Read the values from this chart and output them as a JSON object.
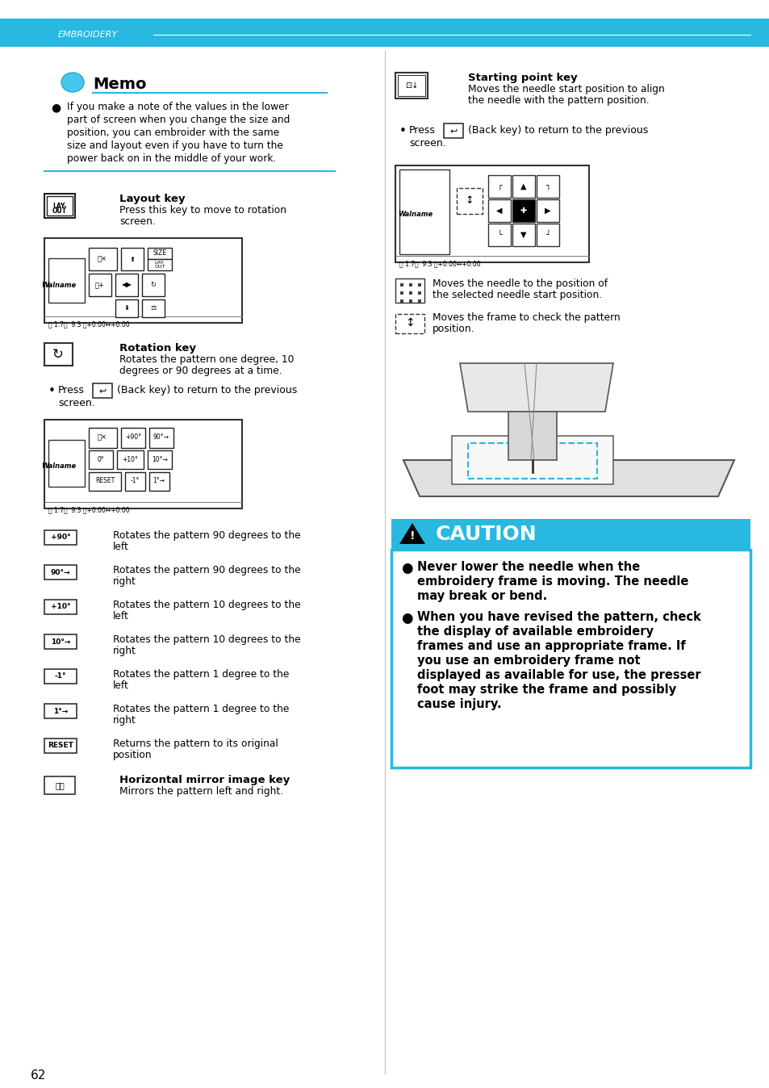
{
  "page_bg": "#ffffff",
  "header_bg": "#29b8e0",
  "header_text": "EMBROIDERY",
  "header_text_color": "#ffffff",
  "page_number": "62",
  "light_blue": "#29b8e0",
  "text_color": "#000000",
  "memo_title": "Memo",
  "memo_lines": [
    "If you make a note of the values in the lower",
    "part of screen when you change the size and",
    "position, you can embroider with the same",
    "size and layout even if you have to turn the",
    "power back on in the middle of your work."
  ],
  "layout_key_label": "Layout key",
  "layout_key_desc": [
    "Press this key to move to rotation",
    "screen."
  ],
  "rotation_key_label": "Rotation key",
  "rotation_key_desc": [
    "Rotates the pattern one degree, 10",
    "degrees or 90 degrees at a time."
  ],
  "rotate_icon_descs": [
    [
      "+90°",
      "Rotates the pattern 90 degrees to the",
      "left"
    ],
    [
      "90°→",
      "Rotates the pattern 90 degrees to the",
      "right"
    ],
    [
      "+10°",
      "Rotates the pattern 10 degrees to the",
      "left"
    ],
    [
      "10°→",
      "Rotates the pattern 10 degrees to the",
      "right"
    ],
    [
      "-1°",
      "Rotates the pattern 1 degree to the",
      "left"
    ],
    [
      "1°→",
      "Rotates the pattern 1 degree to the",
      "right"
    ],
    [
      "RESET",
      "Returns the pattern to its original",
      "position"
    ]
  ],
  "hmirror_label": "Horizontal mirror image key",
  "hmirror_desc": "Mirrors the pattern left and right.",
  "right_starting_label": "Starting point key",
  "right_starting_desc": [
    "Moves the needle start position to align",
    "the needle with the pattern position."
  ],
  "right_move_needle_desc": [
    "Moves the needle to the position of",
    "the selected needle start position."
  ],
  "right_move_frame_desc": [
    "Moves the frame to check the pattern",
    "position."
  ],
  "caution_title": "CAUTION",
  "caution_bg": "#29b8e0",
  "caution_border": "#29b8e0",
  "caution_lines1": [
    "Never lower the needle when the",
    "embroidery frame is moving. The needle",
    "may break or bend."
  ],
  "caution_lines2": [
    "When you have revised the pattern, check",
    "the display of available embroidery",
    "frames and use an appropriate frame. If",
    "you use an embroidery frame not",
    "displayed as available for use, the presser",
    "foot may strike the frame and possibly",
    "cause injury."
  ]
}
